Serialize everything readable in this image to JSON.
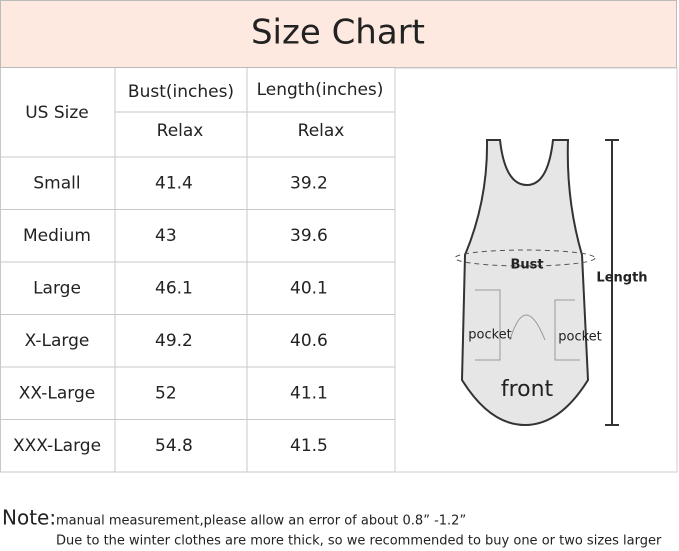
{
  "header": {
    "title": "Size Chart"
  },
  "table": {
    "columns": [
      "US Size",
      "Bust(inches)",
      "Length(inches)"
    ],
    "subheaders": [
      "Relax",
      "Relax"
    ],
    "rows": [
      [
        "Small",
        41.4,
        39.2
      ],
      [
        "Medium",
        43,
        39.6
      ],
      [
        "Large",
        46.1,
        40.1
      ],
      [
        "X-Large",
        49.2,
        40.6
      ],
      [
        "XX-Large",
        52,
        41.1
      ],
      [
        "XXX-Large",
        54.8,
        41.5
      ]
    ]
  },
  "diagram": {
    "bust_label": "Bust",
    "length_label": "Length",
    "pocket_left": "pocket",
    "pocket_right": "pocket",
    "front_label": "front"
  },
  "note": {
    "label": "Note:",
    "line1": "manual measurement,please allow an error of about 0.8”  -1.2”",
    "line2": "Due to the winter clothes are more thick, so we recommended to buy one or two sizes larger"
  }
}
